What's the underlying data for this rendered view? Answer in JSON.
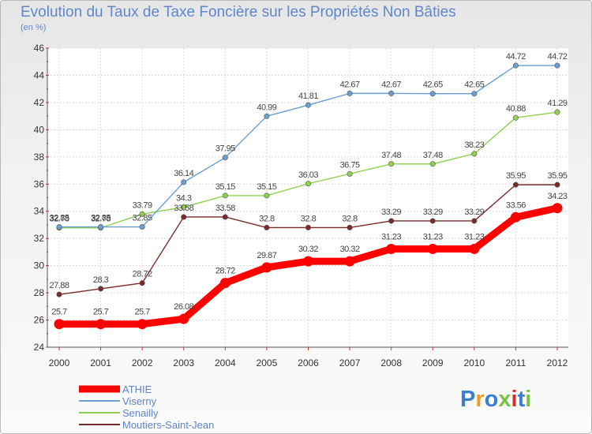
{
  "title": "Evolution du Taux de Taxe Foncière sur les Propriétés Non Bâties",
  "unit": "(en %)",
  "logo": {
    "text": "Proxiti",
    "colors": [
      "#3a7fd0",
      "#f19a2a",
      "#3a7fd0",
      "#7cc142",
      "#d12d2d",
      "#3a7fd0",
      "#7cc142"
    ]
  },
  "chart_data": {
    "type": "line",
    "x": [
      "2000",
      "2001",
      "2002",
      "2003",
      "2004",
      "2005",
      "2006",
      "2007",
      "2008",
      "2009",
      "2010",
      "2011",
      "2012"
    ],
    "ylim": [
      24,
      46
    ],
    "yticks": [
      24,
      26,
      28,
      30,
      32,
      34,
      36,
      38,
      40,
      42,
      44,
      46
    ],
    "grid": true,
    "legend_position": "bottom-left",
    "series": [
      {
        "name": "Moutiers-Saint-Jean",
        "color": "#7a2a2a",
        "values": [
          27.88,
          28.3,
          28.72,
          33.58,
          33.58,
          32.8,
          32.8,
          32.8,
          33.29,
          33.29,
          33.29,
          35.95,
          35.95
        ],
        "labels": [
          "27.88",
          "28.3",
          "28.72",
          "33.58",
          "33.58",
          "32.8",
          "32.8",
          "32.8",
          "33.29",
          "33.29",
          "33.29",
          "35.95",
          "35.95"
        ]
      },
      {
        "name": "Senailly",
        "color": "#8fd14f",
        "values": [
          32.78,
          32.78,
          33.79,
          34.3,
          35.15,
          35.15,
          36.03,
          36.75,
          37.48,
          37.48,
          38.23,
          40.88,
          41.29
        ],
        "labels": [
          "32.78",
          "32.78",
          "33.79",
          "34.3",
          "35.15",
          "35.15",
          "36.03",
          "36.75",
          "37.48",
          "37.48",
          "38.23",
          "40.88",
          "41.29"
        ]
      },
      {
        "name": "Viserny",
        "color": "#6a9fd4",
        "values": [
          32.85,
          32.85,
          32.85,
          36.14,
          37.95,
          40.99,
          41.81,
          42.67,
          42.67,
          42.65,
          42.65,
          44.72,
          44.72
        ],
        "labels": [
          "32.85",
          "32.85",
          "32.85",
          "36.14",
          "37.95",
          "40.99",
          "41.81",
          "42.67",
          "42.67",
          "42.65",
          "42.65",
          "44.72",
          "44.72"
        ]
      },
      {
        "name": "ATHIE",
        "color": "#ff0000",
        "values": [
          25.7,
          25.7,
          25.7,
          26.08,
          28.72,
          29.87,
          30.32,
          30.32,
          31.23,
          31.23,
          31.23,
          33.56,
          34.23
        ],
        "labels": [
          "25.7",
          "25.7",
          "25.7",
          "26.08",
          "28.72",
          "29.87",
          "30.32",
          "30.32",
          "31.23",
          "31.23",
          "31.23",
          "33.56",
          "34.23"
        ]
      }
    ],
    "legend": [
      "ATHIE",
      "Viserny",
      "Senailly",
      "Moutiers-Saint-Jean"
    ]
  }
}
